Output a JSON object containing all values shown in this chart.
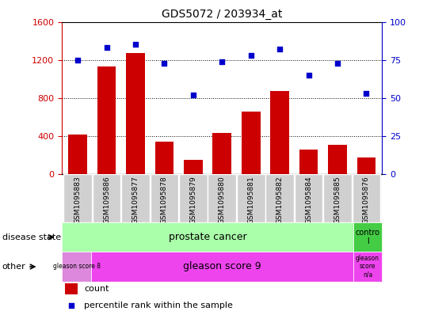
{
  "title": "GDS5072 / 203934_at",
  "samples": [
    "GSM1095883",
    "GSM1095886",
    "GSM1095877",
    "GSM1095878",
    "GSM1095879",
    "GSM1095880",
    "GSM1095881",
    "GSM1095882",
    "GSM1095884",
    "GSM1095885",
    "GSM1095876"
  ],
  "counts": [
    420,
    1130,
    1270,
    340,
    150,
    430,
    660,
    870,
    260,
    310,
    175
  ],
  "percentile_ranks": [
    75,
    83,
    85,
    73,
    52,
    74,
    78,
    82,
    65,
    73,
    53
  ],
  "left_ylim": [
    0,
    1600
  ],
  "right_ylim": [
    0,
    100
  ],
  "left_yticks": [
    0,
    400,
    800,
    1200,
    1600
  ],
  "right_yticks": [
    0,
    25,
    50,
    75,
    100
  ],
  "bar_color": "#cc0000",
  "dot_color": "#0000cc",
  "tick_label_bg": "#d0d0d0",
  "prostate_cancer_color": "#aaffaa",
  "control_color": "#44cc44",
  "gleason8_color": "#dd88dd",
  "gleason9_color": "#ee44ee",
  "gleasonNA_color": "#ee44ee",
  "background_color": "#ffffff",
  "hline_color": "#000000",
  "hline_vals": [
    400,
    800,
    1200
  ]
}
